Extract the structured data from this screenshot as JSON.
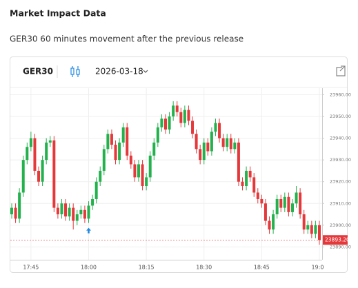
{
  "header": {
    "title": "Market Impact Data",
    "subtitle": "GER30 60 minutes movement after the previous release"
  },
  "widget": {
    "symbol": "GER30",
    "date": "2026-03-18"
  },
  "chart_data": {
    "type": "candlestick",
    "up_color": "#22b14c",
    "down_color": "#e5383b",
    "x": [
      "17:40",
      "17:41",
      "17:42",
      "17:43",
      "17:44",
      "17:45",
      "17:46",
      "17:47",
      "17:48",
      "17:49",
      "17:50",
      "17:51",
      "17:52",
      "17:53",
      "17:54",
      "17:55",
      "17:56",
      "17:57",
      "17:58",
      "17:59",
      "18:00",
      "18:01",
      "18:02",
      "18:03",
      "18:04",
      "18:05",
      "18:06",
      "18:07",
      "18:08",
      "18:09",
      "18:10",
      "18:11",
      "18:12",
      "18:13",
      "18:14",
      "18:15",
      "18:16",
      "18:17",
      "18:18",
      "18:19",
      "18:20",
      "18:21",
      "18:22",
      "18:23",
      "18:24",
      "18:25",
      "18:26",
      "18:27",
      "18:28",
      "18:29",
      "18:30",
      "18:31",
      "18:32",
      "18:33",
      "18:34",
      "18:35",
      "18:36",
      "18:37",
      "18:38",
      "18:39",
      "18:40",
      "18:41",
      "18:42",
      "18:43",
      "18:44",
      "18:45",
      "18:46",
      "18:47",
      "18:48",
      "18:49",
      "18:50",
      "18:51",
      "18:52",
      "18:53",
      "18:54",
      "18:55",
      "18:56",
      "18:57",
      "18:58",
      "18:59",
      "19:00"
    ],
    "open": [
      23905,
      23908,
      23903,
      23915,
      23930,
      23936,
      23940,
      23925,
      23920,
      23930,
      23938,
      23939,
      23908,
      23905,
      23910,
      23904,
      23908,
      23902,
      23905,
      23907,
      23903,
      23909,
      23912,
      23920,
      23925,
      23935,
      23942,
      23937,
      23930,
      23938,
      23945,
      23932,
      23928,
      23922,
      23928,
      23918,
      23922,
      23932,
      23938,
      23945,
      23949,
      23944,
      23950,
      23955,
      23952,
      23947,
      23953,
      23948,
      23942,
      23935,
      23930,
      23938,
      23934,
      23943,
      23947,
      23940,
      23936,
      23940,
      23935,
      23938,
      23920,
      23918,
      23925,
      23922,
      23915,
      23912,
      23910,
      23902,
      23898,
      23905,
      23912,
      23908,
      23913,
      23906,
      23910,
      23915,
      23905,
      23898,
      23900,
      23896,
      23900
    ],
    "high": [
      23910,
      23910,
      23917,
      23932,
      23938,
      23943,
      23942,
      23927,
      23932,
      23940,
      23941,
      23941,
      23910,
      23912,
      23912,
      23910,
      23910,
      23907,
      23909,
      23909,
      23911,
      23914,
      23922,
      23927,
      23937,
      23944,
      23944,
      23939,
      23940,
      23947,
      23947,
      23934,
      23930,
      23930,
      23930,
      23924,
      23934,
      23940,
      23947,
      23951,
      23951,
      23952,
      23957,
      23957,
      23954,
      23955,
      23955,
      23950,
      23944,
      23937,
      23940,
      23940,
      23945,
      23949,
      23949,
      23942,
      23942,
      23942,
      23940,
      23940,
      23922,
      23927,
      23927,
      23924,
      23917,
      23914,
      23912,
      23904,
      23907,
      23914,
      23914,
      23915,
      23915,
      23912,
      23918,
      23917,
      23907,
      23902,
      23902,
      23902,
      23902
    ],
    "low": [
      23903,
      23901,
      23901,
      23913,
      23928,
      23934,
      23923,
      23918,
      23918,
      23928,
      23936,
      23906,
      23903,
      23903,
      23902,
      23902,
      23898,
      23900,
      23903,
      23901,
      23901,
      23907,
      23910,
      23918,
      23923,
      23933,
      23935,
      23928,
      23928,
      23936,
      23930,
      23926,
      23920,
      23920,
      23916,
      23916,
      23920,
      23930,
      23936,
      23943,
      23942,
      23942,
      23948,
      23950,
      23945,
      23945,
      23946,
      23940,
      23933,
      23928,
      23928,
      23932,
      23932,
      23941,
      23938,
      23934,
      23934,
      23933,
      23933,
      23918,
      23916,
      23916,
      23920,
      23913,
      23910,
      23908,
      23900,
      23896,
      23896,
      23903,
      23906,
      23906,
      23904,
      23904,
      23908,
      23903,
      23896,
      23896,
      23894,
      23894,
      23891
    ],
    "close": [
      23908,
      23903,
      23915,
      23930,
      23936,
      23940,
      23925,
      23920,
      23930,
      23938,
      23939,
      23908,
      23905,
      23910,
      23904,
      23908,
      23902,
      23905,
      23907,
      23903,
      23909,
      23912,
      23920,
      23925,
      23935,
      23942,
      23937,
      23930,
      23938,
      23945,
      23932,
      23928,
      23922,
      23928,
      23918,
      23922,
      23932,
      23938,
      23945,
      23949,
      23944,
      23950,
      23955,
      23952,
      23947,
      23953,
      23948,
      23942,
      23935,
      23930,
      23938,
      23934,
      23943,
      23947,
      23940,
      23936,
      23940,
      23935,
      23938,
      23920,
      23918,
      23925,
      23922,
      23915,
      23912,
      23910,
      23902,
      23898,
      23905,
      23912,
      23908,
      23913,
      23906,
      23910,
      23915,
      23905,
      23898,
      23900,
      23896,
      23900,
      23893.2
    ],
    "xticks": [
      "17:45",
      "18:00",
      "18:15",
      "18:30",
      "18:45",
      "19:00"
    ],
    "ylim": [
      23886,
      23963
    ],
    "yticks": [
      {
        "value": 23890,
        "label": "23890.00"
      },
      {
        "value": 23900,
        "label": "23900.00"
      },
      {
        "value": 23910,
        "label": "23910.00"
      },
      {
        "value": 23920,
        "label": "23920.00"
      },
      {
        "value": 23930,
        "label": "23930.00"
      },
      {
        "value": 23940,
        "label": "23940.00"
      },
      {
        "value": 23950,
        "label": "23950.00"
      },
      {
        "value": 23960,
        "label": "23960.00"
      }
    ],
    "grid": true,
    "price_tag": {
      "value": 23893.2,
      "label": "23893.20",
      "color": "#e5383b"
    },
    "event_marker": {
      "x": "18:00",
      "color": "#1e88e5"
    }
  }
}
